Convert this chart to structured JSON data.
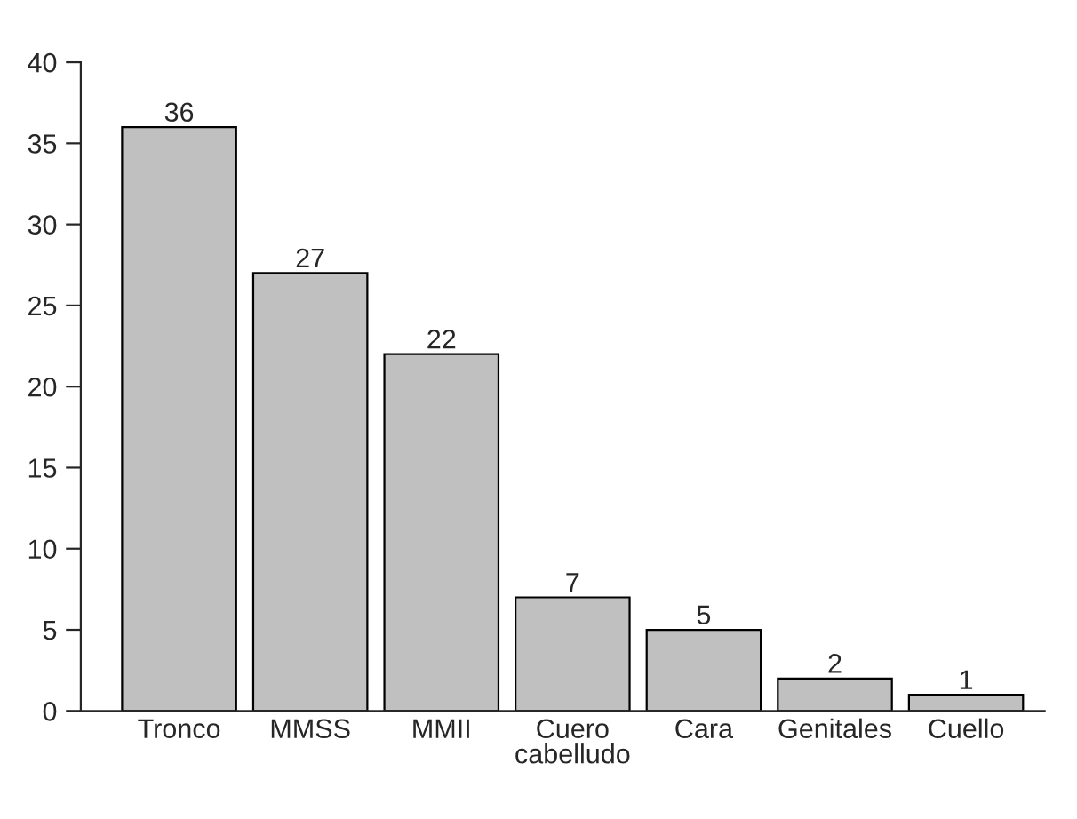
{
  "chart_data": {
    "type": "bar",
    "categories": [
      "Tronco",
      "MMSS",
      "MMII",
      "Cuero\ncabelludo",
      "Cara",
      "Genitales",
      "Cuello"
    ],
    "values": [
      36,
      27,
      22,
      7,
      5,
      2,
      1
    ],
    "color": "#c0c0c0",
    "ylim": [
      0,
      40
    ],
    "yticks": [
      0,
      5,
      10,
      15,
      20,
      25,
      30,
      35,
      40
    ],
    "data_labels": true,
    "grid": false,
    "legend": false
  }
}
